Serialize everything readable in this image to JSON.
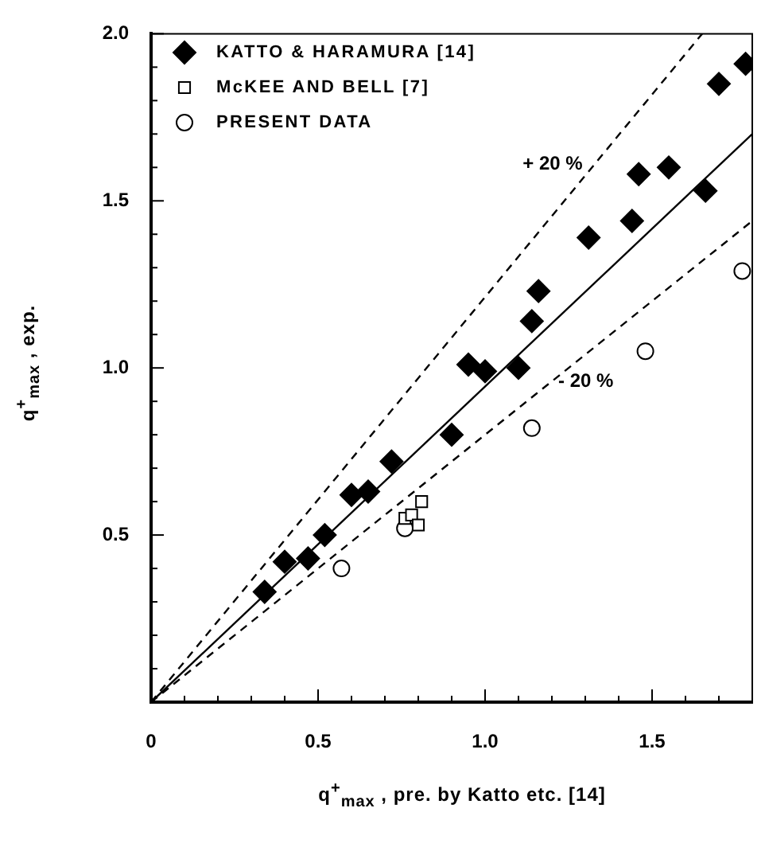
{
  "chart_data": {
    "type": "scatter",
    "xlabel": "q$^{+}$$_{max}$ , pre. by Katto etc. [14]",
    "ylabel": "q$^{+}$$_{max}$ , exp.",
    "xlim": [
      0,
      1.8
    ],
    "ylim": [
      0,
      2.0
    ],
    "xticks": [
      0,
      {
        "value": 0.1,
        "label": null
      },
      {
        "value": 0.2,
        "label": null
      },
      {
        "value": 0.3,
        "label": null
      },
      {
        "value": 0.4,
        "label": null
      },
      0.5,
      {
        "value": 0.6,
        "label": null
      },
      {
        "value": 0.7,
        "label": null
      },
      {
        "value": 0.8,
        "label": null
      },
      {
        "value": 0.9,
        "label": null
      },
      {
        "value": 1,
        "label": "1.0"
      },
      {
        "value": 1.1,
        "label": null
      },
      {
        "value": 1.2,
        "label": null
      },
      {
        "value": 1.3,
        "label": null
      },
      {
        "value": 1.4,
        "label": null
      },
      1.5,
      {
        "value": 1.6,
        "label": null
      },
      {
        "value": 1.7,
        "label": null
      }
    ],
    "yticks": [
      {
        "value": 0,
        "label": null
      },
      {
        "value": 0.1,
        "label": null
      },
      {
        "value": 0.2,
        "label": null
      },
      {
        "value": 0.3,
        "label": null
      },
      {
        "value": 0.4,
        "label": null
      },
      0.5,
      {
        "value": 0.6,
        "label": null
      },
      {
        "value": 0.7,
        "label": null
      },
      {
        "value": 0.8,
        "label": null
      },
      {
        "value": 0.9,
        "label": null
      },
      {
        "value": 1,
        "label": "1.0"
      },
      {
        "value": 1.1,
        "label": null
      },
      {
        "value": 1.2,
        "label": null
      },
      {
        "value": 1.3,
        "label": null
      },
      {
        "value": 1.4,
        "label": null
      },
      1.5,
      {
        "value": 1.6,
        "label": null
      },
      {
        "value": 1.7,
        "label": null
      },
      {
        "value": 1.8,
        "label": null
      },
      {
        "value": 1.9,
        "label": null
      },
      {
        "value": 2,
        "label": "2.0"
      }
    ],
    "grid": false,
    "legend": "top left",
    "series": [
      {
        "name": "KATTO & HARAMURA [14]",
        "color": "#000000",
        "marker": "diamond",
        "x": [
          0.34,
          0.4,
          0.47,
          0.52,
          0.6,
          0.65,
          0.72,
          0.9,
          0.95,
          1.0,
          1.1,
          1.14,
          1.16,
          1.31,
          1.44,
          1.46,
          1.55,
          1.66,
          1.7,
          1.78
        ],
        "values": [
          0.33,
          0.42,
          0.43,
          0.5,
          0.62,
          0.63,
          0.72,
          0.8,
          1.01,
          0.99,
          1.0,
          1.14,
          1.23,
          1.39,
          1.44,
          1.58,
          1.6,
          1.53,
          1.85,
          1.91
        ]
      },
      {
        "name": "McKEE AND BELL [7]",
        "color": "#000000",
        "marker": "square",
        "x": [
          0.76,
          0.78,
          0.8,
          0.81
        ],
        "values": [
          0.55,
          0.56,
          0.53,
          0.6
        ]
      },
      {
        "name": "PRESENT DATA",
        "color": "#000000",
        "marker": "circle",
        "x": [
          0.57,
          0.76,
          1.14,
          1.48,
          1.77
        ],
        "values": [
          0.4,
          0.52,
          0.82,
          1.05,
          1.29
        ]
      },
      {
        "type": "line",
        "color": "#000000",
        "line_style": "solid",
        "x": [
          0,
          1.8
        ],
        "values": [
          0,
          1.7
        ]
      },
      {
        "type": "line",
        "color": "#000000",
        "line_style": "dashed",
        "x": [
          0,
          1.65
        ],
        "values": [
          0,
          2.0
        ]
      },
      {
        "type": "line",
        "color": "#000000",
        "line_style": "dashed",
        "x": [
          0,
          1.8
        ],
        "values": [
          0,
          1.44
        ]
      }
    ],
    "annotations": [
      {
        "text": "+ 20 %",
        "x": 1.33,
        "y": 1.61
      },
      {
        "text": "- 20 %",
        "x": 1.2,
        "y": 0.96
      }
    ]
  }
}
